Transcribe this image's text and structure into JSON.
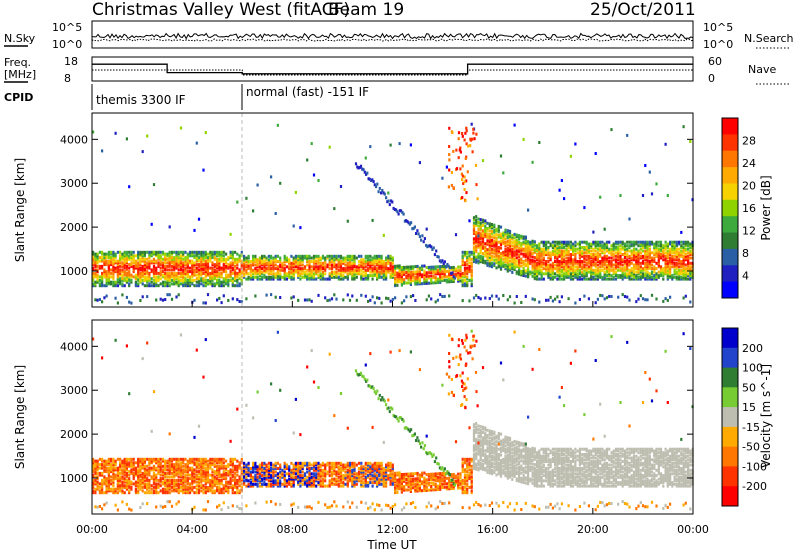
{
  "header": {
    "title": "Christmas Valley West (fitACF)",
    "beam": "Beam 19",
    "date": "25/Oct/2011"
  },
  "summary_panels": {
    "nsky_label": "N.Sky",
    "nsky_ticks": [
      "10^5",
      "10^0"
    ],
    "nsearch_label": "N.Search",
    "freq_label": "Freq.",
    "freq_unit": "[MHz]",
    "freq_ticks": [
      "18",
      "8"
    ],
    "nave_label": "Nave",
    "nave_ticks": [
      "60",
      "0"
    ],
    "cpid_label": "CPID",
    "cpid_modes": [
      "themis 3300 IF",
      "normal (fast) -151 IF"
    ]
  },
  "chart_data": [
    {
      "type": "heatmap",
      "title": "",
      "xlabel": "Time UT",
      "ylabel": "Slant Range [km]",
      "x_range_hours": [
        0,
        24
      ],
      "x_ticks": [
        "00:00",
        "04:00",
        "08:00",
        "12:00",
        "16:00",
        "20:00",
        "00:00"
      ],
      "ylim": [
        180,
        4600
      ],
      "y_ticks": [
        1000,
        2000,
        3000,
        4000
      ],
      "colorbar": {
        "label": "Power [dB]",
        "ticks": [
          "28",
          "24",
          "20",
          "16",
          "12",
          "8",
          "4"
        ],
        "colors": [
          "#ff0000",
          "#ff3300",
          "#ff7700",
          "#ffaa00",
          "#f5d200",
          "#8fd400",
          "#3caa3c",
          "#2e7d32",
          "#2a5fa5",
          "#2020c0",
          "#0000ff"
        ]
      }
    },
    {
      "type": "heatmap",
      "title": "",
      "xlabel": "Time UT",
      "ylabel": "Slant Range [km]",
      "x_range_hours": [
        0,
        24
      ],
      "x_ticks": [
        "00:00",
        "04:00",
        "08:00",
        "12:00",
        "16:00",
        "20:00",
        "00:00"
      ],
      "ylim": [
        180,
        4600
      ],
      "y_ticks": [
        1000,
        2000,
        3000,
        4000
      ],
      "colorbar": {
        "label": "Velocity [m s^-1]",
        "ticks": [
          "200",
          "100",
          "50",
          "15",
          "-15",
          "-50",
          "-100",
          "-200"
        ],
        "colors": [
          "#0000cc",
          "#2244cc",
          "#2e7d32",
          "#77cc33",
          "#bdbdb0",
          "#ffaa00",
          "#ff7700",
          "#ff3300",
          "#ff0000"
        ]
      }
    }
  ]
}
